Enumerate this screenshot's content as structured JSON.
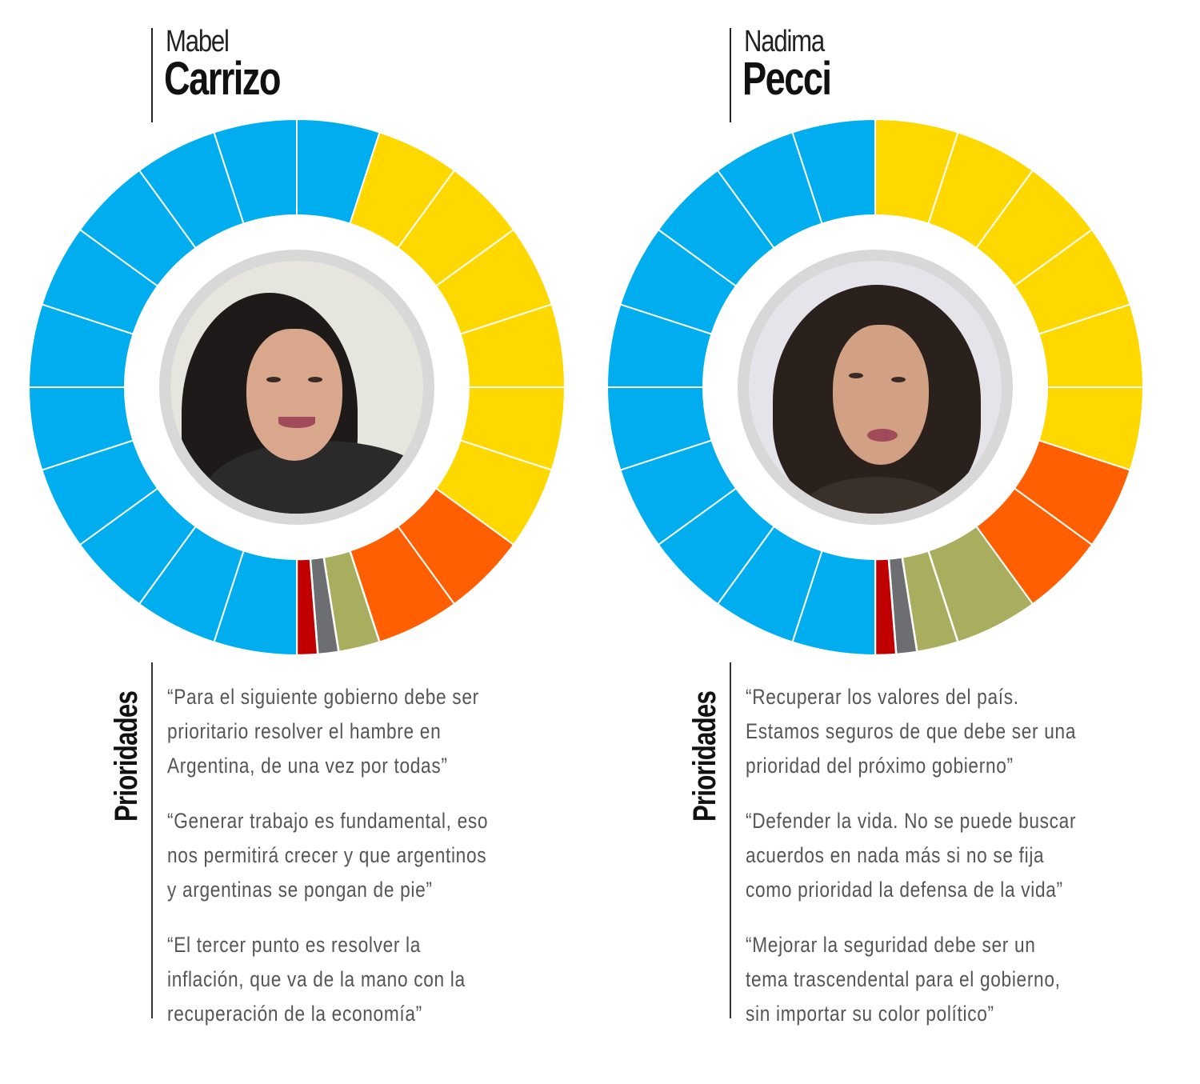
{
  "candidates": [
    {
      "first_name": "Mabel",
      "last_name": "Carrizo",
      "section_label": "Prioridades",
      "photo": {
        "skin": "#d9a88c",
        "hair": "#1e1a1a",
        "clothing": "#2a2a2a",
        "background": "#e6e6de"
      },
      "quotes": [
        "“Para el siguiente gobierno debe ser\nprioritario resolver el hambre en\nArgentina, de una vez por todas”",
        "“Generar trabajo es fundamental, eso\nnos permitirá crecer y que argentinos\ny argentinas se pongan de pie”",
        "“El tercer punto es resolver la\ninflación, que va de la mano con la\nrecuperación de la economía”"
      ]
    },
    {
      "first_name": "Nadima",
      "last_name": "Pecci",
      "section_label": "Prioridades",
      "photo": {
        "skin": "#d2a083",
        "hair": "#2b211c",
        "clothing": "#3a302a",
        "background": "#e4e4ea"
      },
      "quotes": [
        "“Recuperar los valores del país.\nEstamos seguros de que debe ser una\nprioridad del próximo gobierno”",
        "“Defender la vida. No se puede buscar\nacuerdos en nada más si no se fija\ncomo prioridad la defensa de la vida”",
        "“Mejorar la seguridad debe ser un\ntema trascendental para el gobierno,\nsin importar su color político”"
      ]
    }
  ],
  "colors": {
    "blue": "#00AEEF",
    "yellow": "#FFD800",
    "orange": "#FF5F00",
    "olive": "#A9AE5E",
    "gray": "#6D6E71",
    "red": "#C00000"
  },
  "chart_data": [
    {
      "type": "pie",
      "title": "Mabel Carrizo",
      "style": "donut, 20 segments of 18° each, clockwise from 12 o'clock",
      "segments": [
        {
          "color": "blue",
          "start": 0,
          "end": 18
        },
        {
          "color": "yellow",
          "start": 18,
          "end": 36
        },
        {
          "color": "yellow",
          "start": 36,
          "end": 54
        },
        {
          "color": "yellow",
          "start": 54,
          "end": 72
        },
        {
          "color": "yellow",
          "start": 72,
          "end": 90
        },
        {
          "color": "yellow",
          "start": 90,
          "end": 108
        },
        {
          "color": "yellow",
          "start": 108,
          "end": 126
        },
        {
          "color": "orange",
          "start": 126,
          "end": 144
        },
        {
          "color": "orange",
          "start": 144,
          "end": 162
        },
        {
          "color": "olive",
          "start": 162,
          "end": 171
        },
        {
          "color": "gray",
          "start": 171,
          "end": 175.5
        },
        {
          "color": "red",
          "start": 175.5,
          "end": 180
        },
        {
          "color": "blue",
          "start": 180,
          "end": 198
        },
        {
          "color": "blue",
          "start": 198,
          "end": 216
        },
        {
          "color": "blue",
          "start": 216,
          "end": 234
        },
        {
          "color": "blue",
          "start": 234,
          "end": 252
        },
        {
          "color": "blue",
          "start": 252,
          "end": 270
        },
        {
          "color": "blue",
          "start": 270,
          "end": 288
        },
        {
          "color": "blue",
          "start": 288,
          "end": 306
        },
        {
          "color": "blue",
          "start": 306,
          "end": 324
        },
        {
          "color": "blue",
          "start": 324,
          "end": 342
        },
        {
          "color": "blue",
          "start": 342,
          "end": 360
        }
      ],
      "summary": {
        "blue": 11,
        "yellow": 6,
        "orange": 2,
        "olive": 0.5,
        "gray": 0.25,
        "red": 0.25
      }
    },
    {
      "type": "pie",
      "title": "Nadima Pecci",
      "style": "donut, 20 segments of 18° each, clockwise from 12 o'clock",
      "segments": [
        {
          "color": "yellow",
          "start": 0,
          "end": 18
        },
        {
          "color": "yellow",
          "start": 18,
          "end": 36
        },
        {
          "color": "yellow",
          "start": 36,
          "end": 54
        },
        {
          "color": "yellow",
          "start": 54,
          "end": 72
        },
        {
          "color": "yellow",
          "start": 72,
          "end": 90
        },
        {
          "color": "yellow",
          "start": 90,
          "end": 108
        },
        {
          "color": "orange",
          "start": 108,
          "end": 126
        },
        {
          "color": "orange",
          "start": 126,
          "end": 144
        },
        {
          "color": "olive",
          "start": 144,
          "end": 162
        },
        {
          "color": "olive",
          "start": 162,
          "end": 171
        },
        {
          "color": "gray",
          "start": 171,
          "end": 175.5
        },
        {
          "color": "red",
          "start": 175.5,
          "end": 180
        },
        {
          "color": "blue",
          "start": 180,
          "end": 198
        },
        {
          "color": "blue",
          "start": 198,
          "end": 216
        },
        {
          "color": "blue",
          "start": 216,
          "end": 234
        },
        {
          "color": "blue",
          "start": 234,
          "end": 252
        },
        {
          "color": "blue",
          "start": 252,
          "end": 270
        },
        {
          "color": "blue",
          "start": 270,
          "end": 288
        },
        {
          "color": "blue",
          "start": 288,
          "end": 306
        },
        {
          "color": "blue",
          "start": 306,
          "end": 324
        },
        {
          "color": "blue",
          "start": 324,
          "end": 342
        },
        {
          "color": "blue",
          "start": 342,
          "end": 360
        }
      ],
      "summary": {
        "blue": 10,
        "yellow": 6,
        "orange": 2,
        "olive": 1.5,
        "gray": 0.25,
        "red": 0.25
      }
    }
  ]
}
